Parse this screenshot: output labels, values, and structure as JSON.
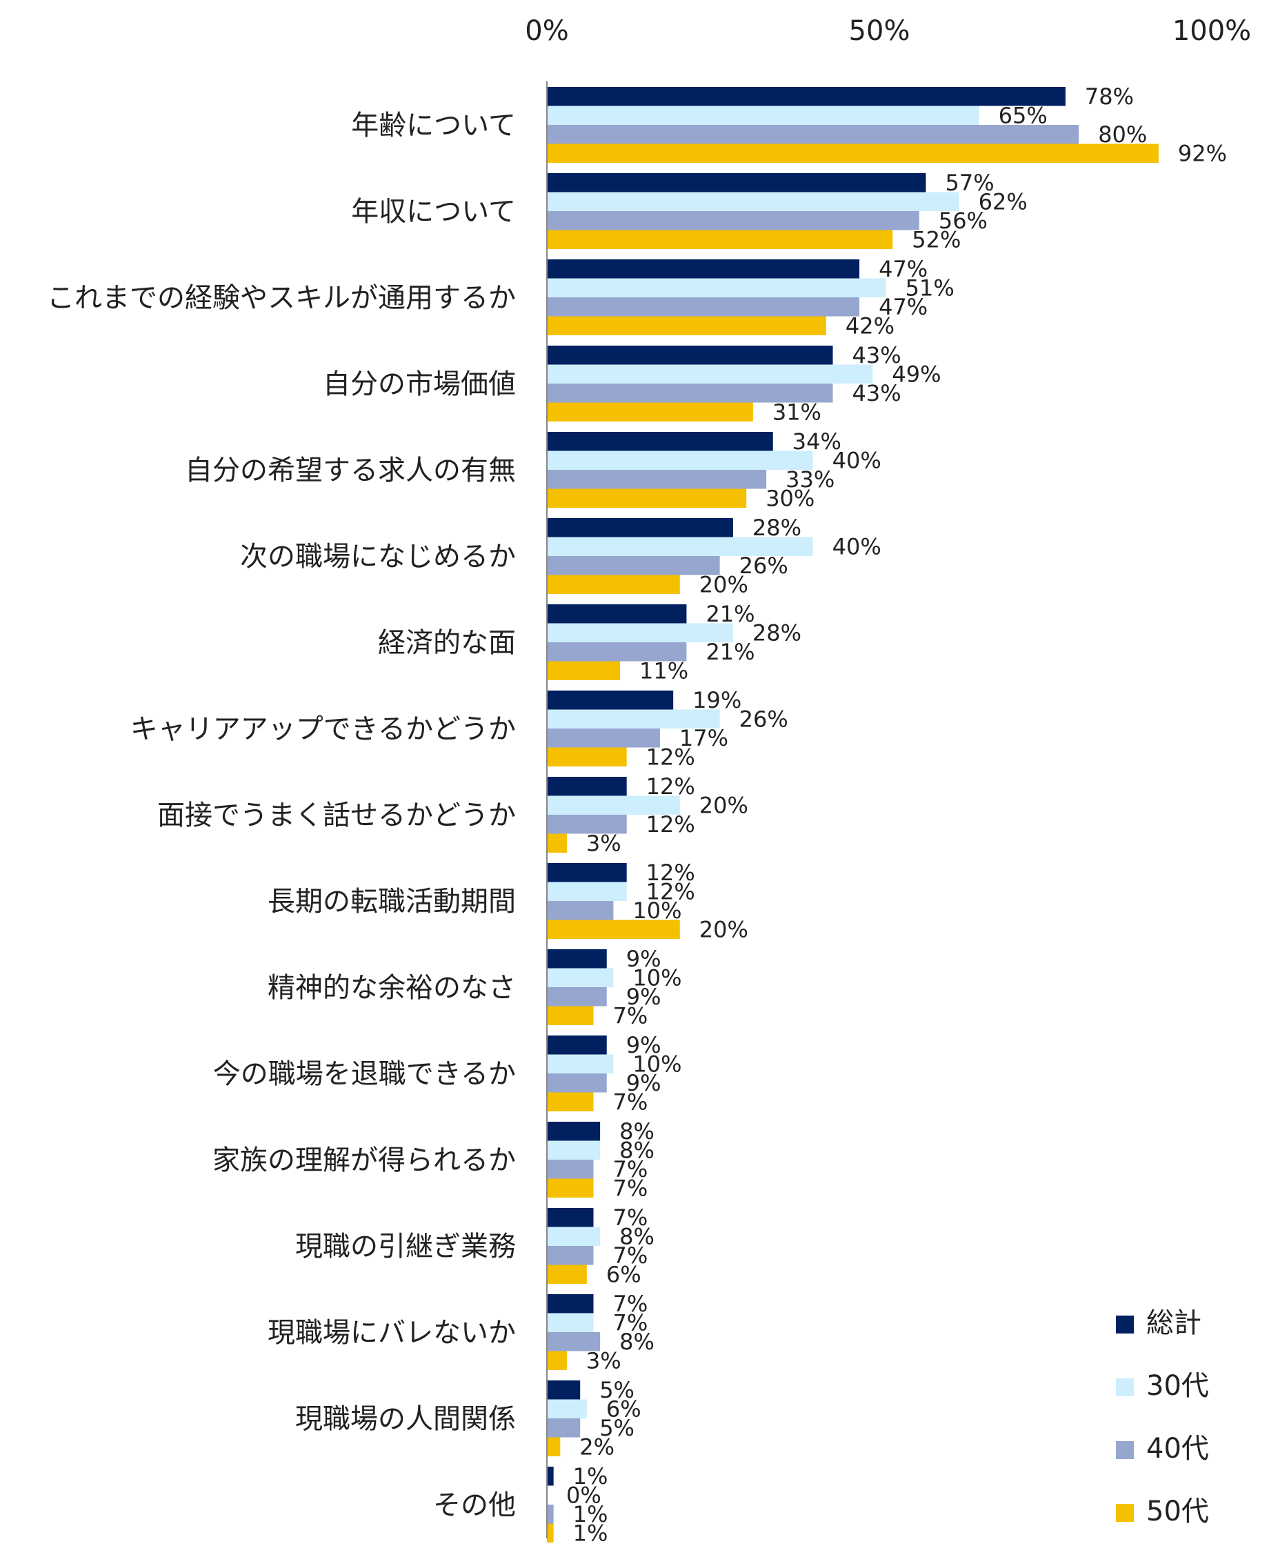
{
  "chart_data": {
    "type": "bar",
    "orientation": "horizontal",
    "categories": [
      "年齢について",
      "年収について",
      "これまでの経験やスキルが通用するか",
      "自分の市場価値",
      "自分の希望する求人の有無",
      "次の職場になじめるか",
      "経済的な面",
      "キャリアアップできるかどうか",
      "面接でうまく話せるかどうか",
      "長期の転職活動期間",
      "精神的な余裕のなさ",
      "今の職場を退職できるか",
      "家族の理解が得られるか",
      "現職の引継ぎ業務",
      "現職場にバレないか",
      "現職場の人間関係",
      "その他"
    ],
    "series": [
      {
        "name": "総計",
        "color": "#002060",
        "values": [
          78,
          57,
          47,
          43,
          34,
          28,
          21,
          19,
          12,
          12,
          9,
          9,
          8,
          7,
          7,
          5,
          1
        ]
      },
      {
        "name": "30代",
        "color": "#cdeefc",
        "values": [
          65,
          62,
          51,
          49,
          40,
          40,
          28,
          26,
          20,
          12,
          10,
          10,
          8,
          8,
          7,
          6,
          0
        ]
      },
      {
        "name": "40代",
        "color": "#97a6cf",
        "values": [
          80,
          56,
          47,
          43,
          33,
          26,
          21,
          17,
          12,
          10,
          9,
          9,
          7,
          7,
          8,
          5,
          1
        ]
      },
      {
        "name": "50代",
        "color": "#f5c000",
        "values": [
          92,
          52,
          42,
          31,
          30,
          20,
          11,
          12,
          3,
          20,
          7,
          7,
          7,
          6,
          3,
          2,
          1
        ]
      }
    ],
    "xlim": [
      0,
      100
    ],
    "x_ticks": [
      "0%",
      "50%",
      "100%"
    ],
    "value_suffix": "%",
    "legend": "bottom-right",
    "grid": false,
    "xlabel": "",
    "ylabel": "",
    "title": ""
  }
}
